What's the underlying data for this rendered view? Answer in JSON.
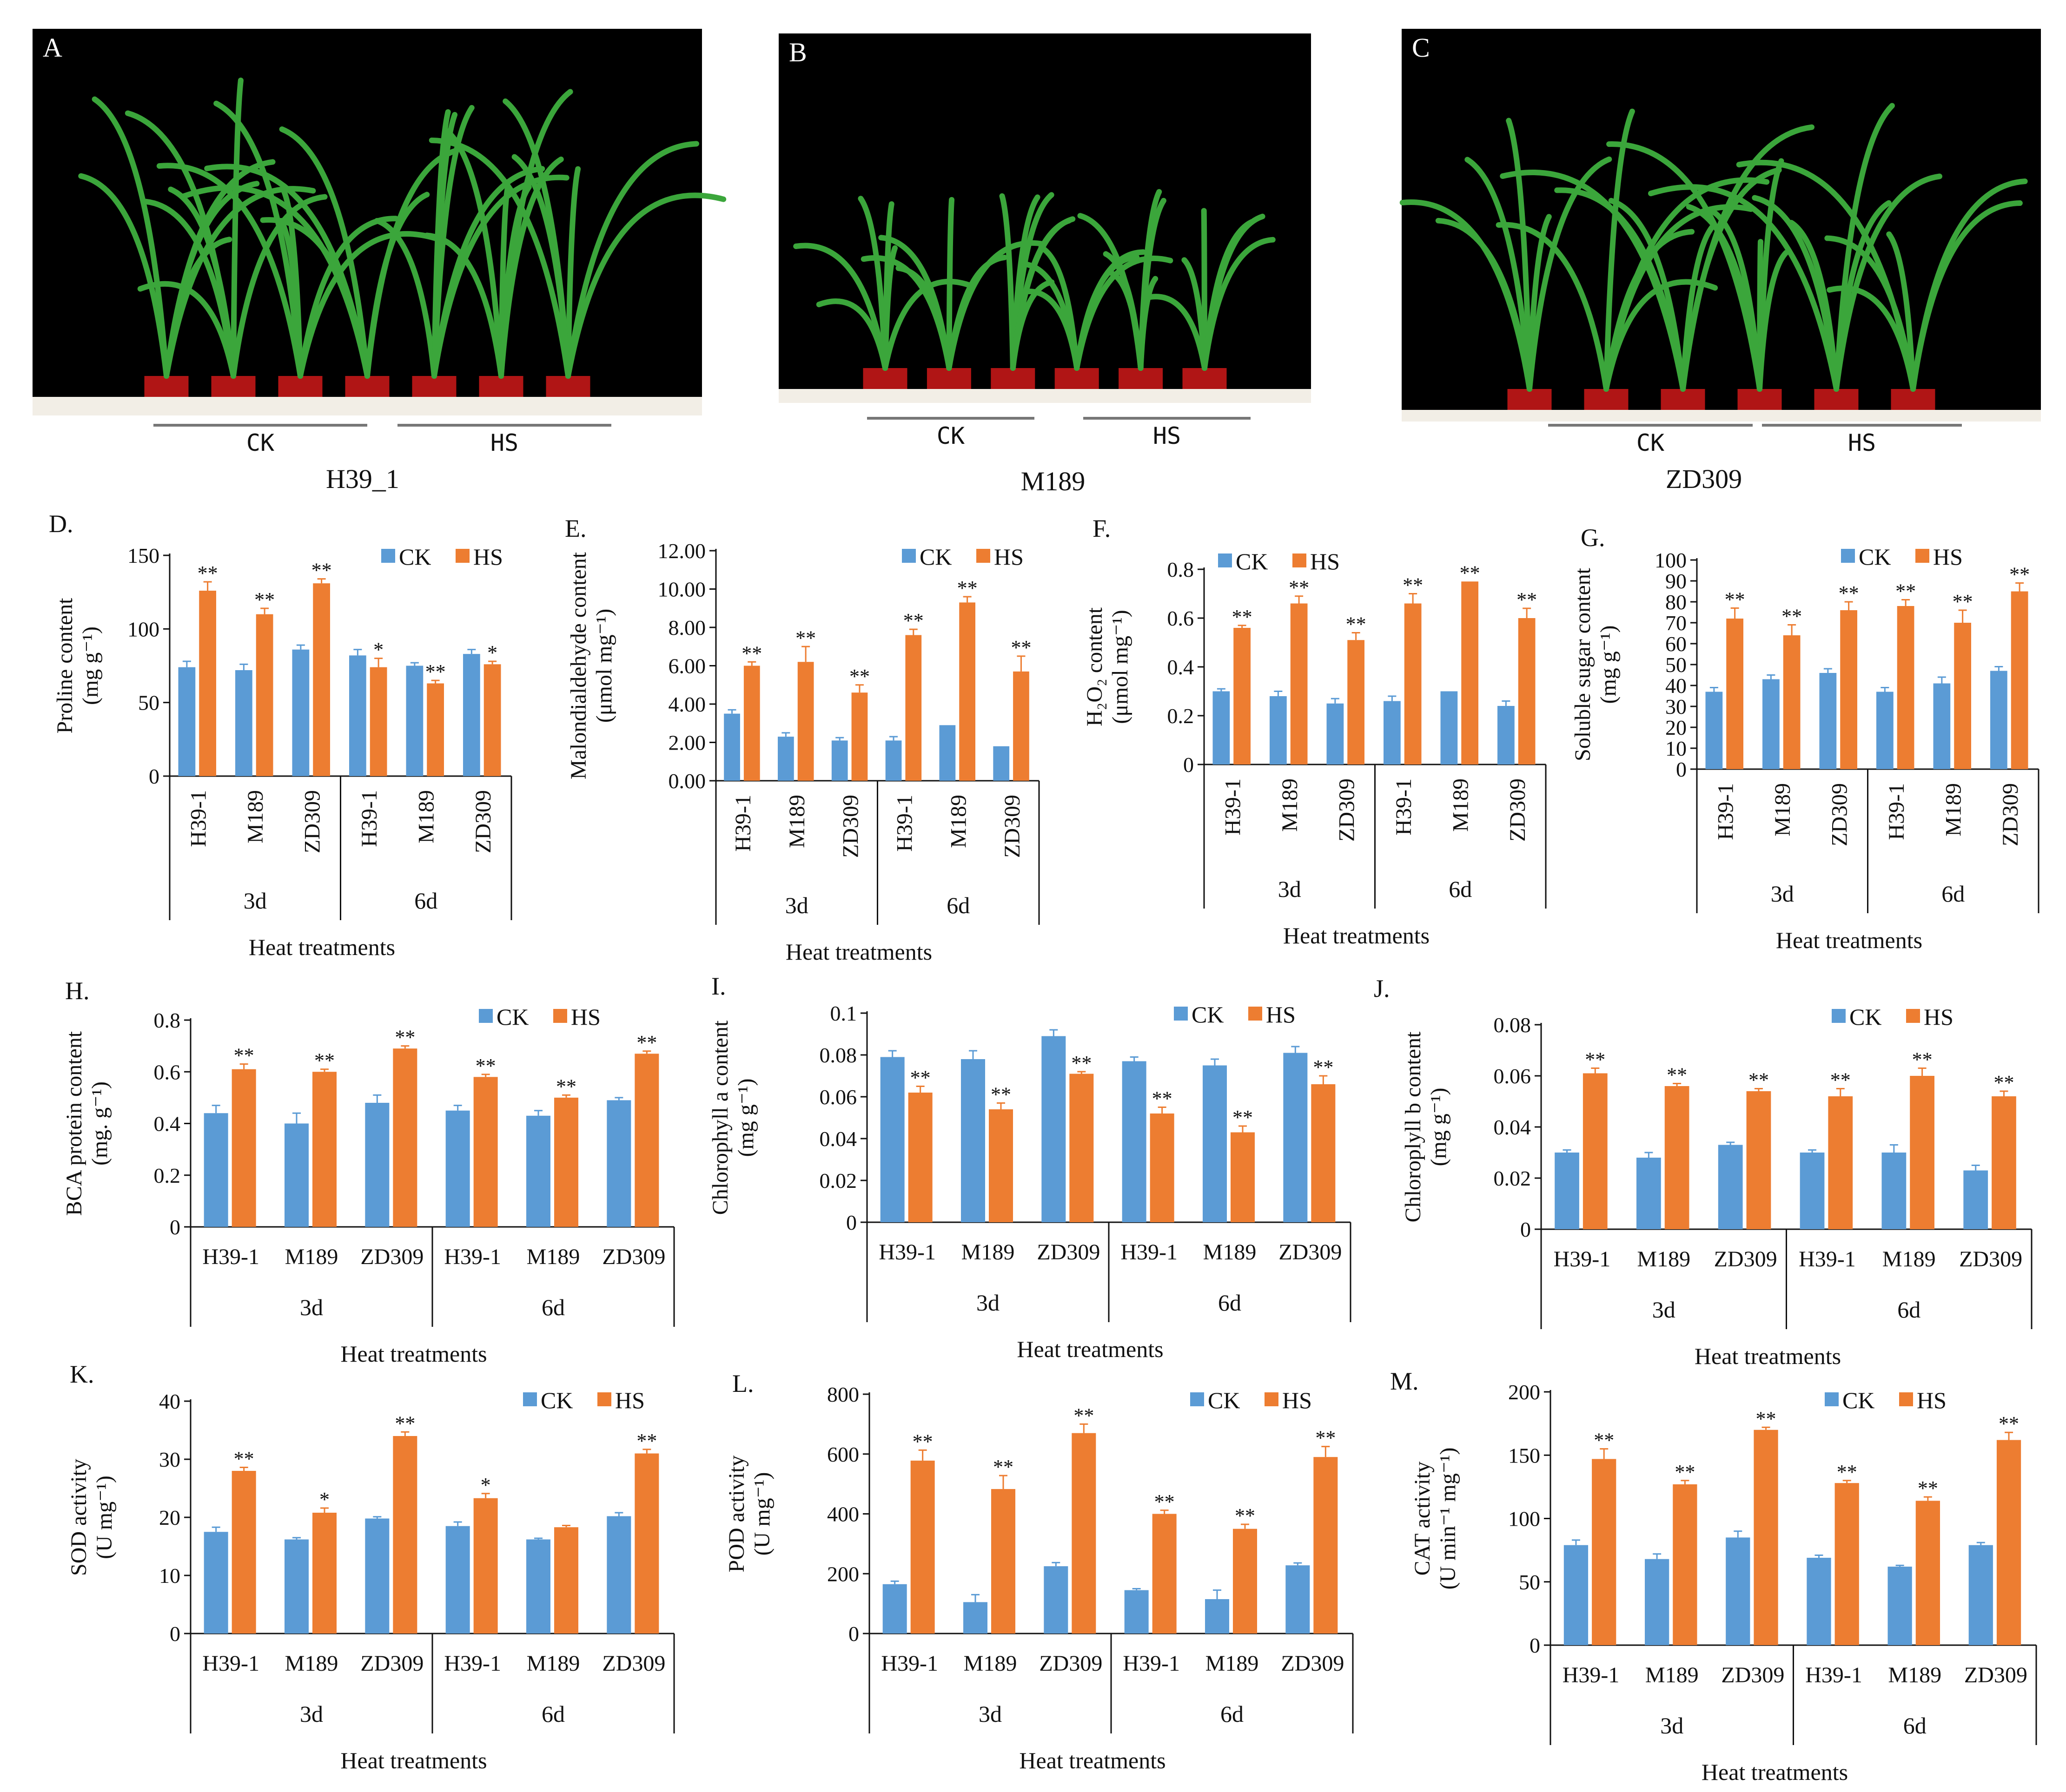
{
  "colors": {
    "ck": "#5b9bd5",
    "hs": "#ed7d31",
    "axis": "#111111",
    "photo_bg": "#000000",
    "floor": "#f2eee6",
    "plant": "#3ba63b",
    "pot": "#b01515"
  },
  "photos": [
    {
      "letter": "A",
      "ck": "CK",
      "hs": "HS",
      "caption": "H39_1"
    },
    {
      "letter": "B",
      "ck": "CK",
      "hs": "HS",
      "caption": "M189"
    },
    {
      "letter": "C",
      "ck": "CK",
      "hs": "HS",
      "caption": "ZD309"
    }
  ],
  "chart_data": [
    {
      "id": "D",
      "letter": "D.",
      "type": "bar",
      "ylabel": "Proline content",
      "yunit": "(mg g⁻¹)",
      "yticks": [
        "0",
        "50",
        "100",
        "150"
      ],
      "ylim": [
        0,
        150
      ],
      "label_style": "rotated",
      "legend": [
        "CK",
        "HS"
      ],
      "xlabel": "Heat treatments",
      "groups": [
        "3d",
        "6d"
      ],
      "categories": [
        "H39-1",
        "M189",
        "ZD309",
        "H39-1",
        "M189",
        "ZD309"
      ],
      "series": [
        {
          "name": "CK",
          "values": [
            74,
            72,
            86,
            82,
            75,
            83
          ],
          "errors": [
            4,
            4,
            3,
            4,
            2,
            3
          ]
        },
        {
          "name": "HS",
          "values": [
            126,
            110,
            131,
            74,
            63,
            76
          ],
          "errors": [
            6,
            4,
            3,
            6,
            2,
            2
          ]
        }
      ],
      "sig": [
        "**",
        "**",
        "**",
        "*",
        "**",
        "*"
      ]
    },
    {
      "id": "E",
      "letter": "E.",
      "type": "bar",
      "ylabel": "Malondialdehyde content",
      "yunit": "(μmol mg⁻¹)",
      "yticks": [
        "0.00",
        "2.00",
        "4.00",
        "6.00",
        "8.00",
        "10.00",
        "12.00"
      ],
      "ylim": [
        0,
        12
      ],
      "label_style": "rotated",
      "legend": [
        "CK",
        "HS"
      ],
      "xlabel": "Heat treatments",
      "groups": [
        "3d",
        "6d"
      ],
      "categories": [
        "H39-1",
        "M189",
        "ZD309",
        "H39-1",
        "M189",
        "ZD309"
      ],
      "series": [
        {
          "name": "CK",
          "values": [
            3.5,
            2.3,
            2.1,
            2.1,
            2.9,
            1.8
          ],
          "errors": [
            0.2,
            0.2,
            0.15,
            0.2,
            0,
            0
          ]
        },
        {
          "name": "HS",
          "values": [
            6.0,
            6.2,
            4.6,
            7.6,
            9.3,
            5.7
          ],
          "errors": [
            0.2,
            0.8,
            0.4,
            0.3,
            0.3,
            0.8
          ]
        }
      ],
      "sig": [
        "**",
        "**",
        "**",
        "**",
        "**",
        "**"
      ]
    },
    {
      "id": "F",
      "letter": "F.",
      "type": "bar",
      "ylabel": "H₂O₂ content",
      "yunit": "(μmol mg⁻¹)",
      "yticks": [
        "0",
        "0.2",
        "0.4",
        "0.6",
        "0.8"
      ],
      "ylim": [
        0,
        0.8
      ],
      "label_style": "rotated",
      "legend": [
        "CK",
        "HS"
      ],
      "xlabel": "Heat  treatments",
      "groups": [
        "3d",
        "6d"
      ],
      "categories": [
        "H39-1",
        "M189",
        "ZD309",
        "H39-1",
        "M189",
        "ZD309"
      ],
      "series": [
        {
          "name": "CK",
          "values": [
            0.3,
            0.28,
            0.25,
            0.26,
            0.3,
            0.24
          ],
          "errors": [
            0.01,
            0.02,
            0.02,
            0.02,
            0,
            0.02
          ]
        },
        {
          "name": "HS",
          "values": [
            0.56,
            0.66,
            0.51,
            0.66,
            0.75,
            0.6
          ],
          "errors": [
            0.01,
            0.03,
            0.03,
            0.04,
            0,
            0.04
          ]
        }
      ],
      "sig": [
        "**",
        "**",
        "**",
        "**",
        "**",
        "**"
      ]
    },
    {
      "id": "G",
      "letter": "G.",
      "type": "bar",
      "ylabel": "Soluble sugar content",
      "yunit": "(mg g⁻¹)",
      "yticks": [
        "0",
        "10",
        "20",
        "30",
        "40",
        "50",
        "60",
        "70",
        "80",
        "90",
        "100"
      ],
      "ylim": [
        0,
        100
      ],
      "label_style": "rotated",
      "legend": [
        "CK",
        "HS"
      ],
      "xlabel": "Heat treatments",
      "groups": [
        "3d",
        "6d"
      ],
      "categories": [
        "H39-1",
        "M189",
        "ZD309",
        "H39-1",
        "M189",
        "ZD309"
      ],
      "series": [
        {
          "name": "CK",
          "values": [
            37,
            43,
            46,
            37,
            41,
            47
          ],
          "errors": [
            2,
            2,
            2,
            2,
            3,
            2
          ]
        },
        {
          "name": "HS",
          "values": [
            72,
            64,
            76,
            78,
            70,
            85
          ],
          "errors": [
            5,
            5,
            4,
            3,
            6,
            4
          ]
        }
      ],
      "sig": [
        "**",
        "**",
        "**",
        "**",
        "**",
        "**"
      ]
    },
    {
      "id": "H",
      "letter": "H.",
      "type": "bar",
      "ylabel": "BCA protein content",
      "yunit": "(mg. g⁻¹)",
      "yticks": [
        "0",
        "0.2",
        "0.4",
        "0.6",
        "0.8"
      ],
      "ylim": [
        0,
        0.8
      ],
      "label_style": "horizontal",
      "legend": [
        "CK",
        "HS"
      ],
      "xlabel": "Heat treatments",
      "groups": [
        "3d",
        "6d"
      ],
      "categories": [
        "H39-1",
        "M189",
        "ZD309",
        "H39-1",
        "M189",
        "ZD309"
      ],
      "series": [
        {
          "name": "CK",
          "values": [
            0.44,
            0.4,
            0.48,
            0.45,
            0.43,
            0.49
          ],
          "errors": [
            0.03,
            0.04,
            0.03,
            0.02,
            0.02,
            0.01
          ]
        },
        {
          "name": "HS",
          "values": [
            0.61,
            0.6,
            0.69,
            0.58,
            0.5,
            0.67
          ],
          "errors": [
            0.02,
            0.01,
            0.01,
            0.01,
            0.01,
            0.01
          ]
        }
      ],
      "sig": [
        "**",
        "**",
        "**",
        "**",
        "**",
        "**"
      ]
    },
    {
      "id": "I",
      "letter": "I.",
      "type": "bar",
      "ylabel": "Chlorophyll a content",
      "yunit": "(mg  g⁻¹)",
      "yticks": [
        "0",
        "0.02",
        "0.04",
        "0.06",
        "0.08",
        "0.1"
      ],
      "ylim": [
        0,
        0.1
      ],
      "label_style": "horizontal",
      "legend": [
        "CK",
        "HS"
      ],
      "xlabel": "Heat treatments",
      "groups": [
        "3d",
        "6d"
      ],
      "categories": [
        "H39-1",
        "M189",
        "ZD309",
        "H39-1",
        "M189",
        "ZD309"
      ],
      "series": [
        {
          "name": "CK",
          "values": [
            0.079,
            0.078,
            0.089,
            0.077,
            0.075,
            0.081
          ],
          "errors": [
            0.003,
            0.004,
            0.003,
            0.002,
            0.003,
            0.003
          ]
        },
        {
          "name": "HS",
          "values": [
            0.062,
            0.054,
            0.071,
            0.052,
            0.043,
            0.066
          ],
          "errors": [
            0.003,
            0.003,
            0.001,
            0.003,
            0.003,
            0.004
          ]
        }
      ],
      "sig": [
        "**",
        "**",
        "**",
        "**",
        "**",
        "**"
      ]
    },
    {
      "id": "J",
      "letter": "J.",
      "type": "bar",
      "ylabel": "Chloroplyll b content",
      "yunit": "(mg  g⁻¹)",
      "yticks": [
        "0",
        "0.02",
        "0.04",
        "0.06",
        "0.08"
      ],
      "ylim": [
        0,
        0.08
      ],
      "label_style": "horizontal",
      "legend": [
        "CK",
        "HS"
      ],
      "xlabel": "Heat treatments",
      "groups": [
        "3d",
        "6d"
      ],
      "categories": [
        "H39-1",
        "M189",
        "ZD309",
        "H39-1",
        "M189",
        "ZD309"
      ],
      "series": [
        {
          "name": "CK",
          "values": [
            0.03,
            0.028,
            0.033,
            0.03,
            0.03,
            0.023
          ],
          "errors": [
            0.001,
            0.002,
            0.001,
            0.001,
            0.003,
            0.002
          ]
        },
        {
          "name": "HS",
          "values": [
            0.061,
            0.056,
            0.054,
            0.052,
            0.06,
            0.052
          ],
          "errors": [
            0.002,
            0.001,
            0.001,
            0.003,
            0.003,
            0.002
          ]
        }
      ],
      "sig": [
        "**",
        "**",
        "**",
        "**",
        "**",
        "**"
      ]
    },
    {
      "id": "K",
      "letter": "K.",
      "type": "bar",
      "ylabel": "SOD activity",
      "yunit": "(U mg⁻¹)",
      "yticks": [
        "0",
        "10",
        "20",
        "30",
        "40"
      ],
      "ylim": [
        0,
        40
      ],
      "label_style": "horizontal",
      "legend": [
        "CK",
        "HS"
      ],
      "xlabel": "Heat treatments",
      "groups": [
        "3d",
        "6d"
      ],
      "categories": [
        "H39-1",
        "M189",
        "ZD309",
        "H39-1",
        "M189",
        "ZD309"
      ],
      "series": [
        {
          "name": "CK",
          "values": [
            17.5,
            16.2,
            19.8,
            18.5,
            16.2,
            20.2
          ],
          "errors": [
            0.8,
            0.3,
            0.3,
            0.7,
            0.2,
            0.6
          ]
        },
        {
          "name": "HS",
          "values": [
            28,
            20.8,
            34,
            23.3,
            18.3,
            31
          ],
          "errors": [
            0.6,
            0.8,
            0.7,
            0.8,
            0.3,
            0.7
          ]
        }
      ],
      "sig": [
        "**",
        "*",
        "**",
        "*",
        "",
        "**"
      ]
    },
    {
      "id": "L",
      "letter": "L.",
      "type": "bar",
      "ylabel": "POD activity",
      "yunit": "(U mg⁻¹)",
      "yticks": [
        "0",
        "200",
        "400",
        "600",
        "800"
      ],
      "ylim": [
        0,
        800
      ],
      "label_style": "horizontal",
      "legend": [
        "CK",
        "HS"
      ],
      "xlabel": "Heat treatments",
      "groups": [
        "3d",
        "6d"
      ],
      "categories": [
        "H39-1",
        "M189",
        "ZD309",
        "H39-1",
        "M189",
        "ZD309"
      ],
      "series": [
        {
          "name": "CK",
          "values": [
            165,
            105,
            225,
            145,
            115,
            228
          ],
          "errors": [
            10,
            25,
            12,
            5,
            30,
            8
          ]
        },
        {
          "name": "HS",
          "values": [
            578,
            483,
            670,
            400,
            350,
            590
          ],
          "errors": [
            35,
            45,
            30,
            12,
            15,
            35
          ]
        }
      ],
      "sig": [
        "**",
        "**",
        "**",
        "**",
        "**",
        "**"
      ]
    },
    {
      "id": "M",
      "letter": "M.",
      "type": "bar",
      "ylabel": "CAT activity",
      "yunit": "(U min⁻¹ mg⁻¹)",
      "yticks": [
        "0",
        "50",
        "100",
        "150",
        "200"
      ],
      "ylim": [
        0,
        200
      ],
      "label_style": "horizontal",
      "legend": [
        "CK",
        "HS"
      ],
      "xlabel": "Heat treatments",
      "groups": [
        "3d",
        "6d"
      ],
      "categories": [
        "H39-1",
        "M189",
        "ZD309",
        "H39-1",
        "M189",
        "ZD309"
      ],
      "series": [
        {
          "name": "CK",
          "values": [
            79,
            68,
            85,
            69,
            62,
            79
          ],
          "errors": [
            4,
            4,
            5,
            2,
            1,
            2
          ]
        },
        {
          "name": "HS",
          "values": [
            147,
            127,
            170,
            128,
            114,
            162
          ],
          "errors": [
            8,
            3,
            2,
            2,
            3,
            6
          ]
        }
      ],
      "sig": [
        "**",
        "**",
        "**",
        "**",
        "**",
        "**"
      ]
    }
  ]
}
